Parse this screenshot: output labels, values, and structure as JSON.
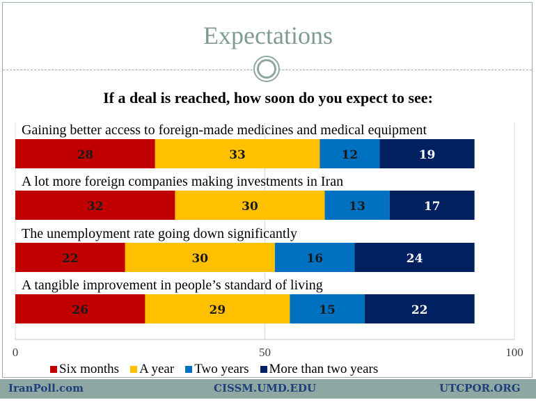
{
  "header": {
    "title": "Expectations"
  },
  "chart_data": {
    "type": "bar",
    "orientation": "horizontal",
    "stacked": true,
    "title": "If a deal is reached, how soon do you expect to see:",
    "categories": [
      "Gaining better access to foreign-made medicines and medical equipment",
      "A lot more foreign companies making investments in Iran",
      "The unemployment rate going down significantly",
      "A tangible improvement in people’s standard of living"
    ],
    "series": [
      {
        "name": "Six months",
        "color": "#c00000",
        "values": [
          28,
          32,
          22,
          26
        ]
      },
      {
        "name": "A year",
        "color": "#ffc000",
        "values": [
          33,
          30,
          30,
          29
        ]
      },
      {
        "name": "Two years",
        "color": "#0070c0",
        "values": [
          12,
          13,
          16,
          15
        ]
      },
      {
        "name": "More than two years",
        "color": "#002060",
        "values": [
          19,
          17,
          24,
          22
        ]
      }
    ],
    "xlim": [
      0,
      100
    ],
    "xticks": [
      "0",
      "50",
      "100"
    ],
    "grid": true,
    "legend_position": "bottom"
  },
  "footer": {
    "left": "IranPoll.com",
    "center": "CISSM.UMD.EDU",
    "right": "UTCPOR.ORG"
  }
}
